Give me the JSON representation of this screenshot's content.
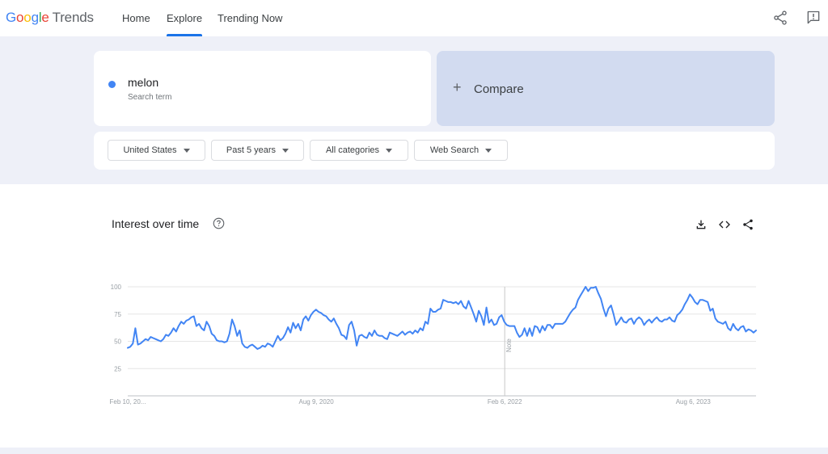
{
  "topbar": {
    "logo_letters": [
      "G",
      "o",
      "o",
      "g",
      "l",
      "e"
    ],
    "logo_trends": "Trends",
    "nav": {
      "home": "Home",
      "explore": "Explore",
      "trending": "Trending Now"
    },
    "icons": [
      "share-icon",
      "feedback-icon"
    ]
  },
  "search": {
    "term": "melon",
    "term_sub": "Search term",
    "dot_color": "#4285f4"
  },
  "compare": {
    "plus": "+",
    "label": "Compare"
  },
  "filters": {
    "region": "United States",
    "period": "Past 5 years",
    "category": "All categories",
    "property": "Web Search"
  },
  "chart_panel": {
    "title": "Interest over time",
    "icons": [
      "help-icon",
      "download-icon",
      "embed-icon",
      "share-icon"
    ],
    "note_label": "Note"
  },
  "chart_data": {
    "type": "line",
    "y_ticks": [
      "100",
      "75",
      "50",
      "25"
    ],
    "ylim": [
      0,
      100
    ],
    "x_labels": [
      "Feb 10, 20...",
      "Aug 9, 2020",
      "Feb 6, 2022",
      "Aug 6, 2023"
    ],
    "xlim": [
      "2019-02-10",
      "2024-02-04"
    ],
    "grid": true,
    "series": [
      {
        "color": "#4285f4",
        "values": [
          44,
          45,
          48,
          62,
          47,
          48,
          50,
          52,
          51,
          54,
          53,
          52,
          51,
          50,
          52,
          56,
          55,
          58,
          62,
          59,
          64,
          68,
          66,
          69,
          70,
          72,
          73,
          64,
          66,
          62,
          60,
          68,
          64,
          57,
          55,
          51,
          50,
          50,
          49,
          50,
          57,
          70,
          64,
          55,
          60,
          48,
          45,
          44,
          46,
          47,
          45,
          43,
          44,
          46,
          45,
          48,
          47,
          45,
          50,
          55,
          51,
          53,
          57,
          63,
          58,
          67,
          62,
          66,
          60,
          70,
          73,
          69,
          74,
          77,
          79,
          77,
          76,
          74,
          73,
          70,
          68,
          71,
          66,
          62,
          56,
          55,
          52,
          65,
          68,
          60,
          46,
          55,
          56,
          54,
          53,
          58,
          55,
          60,
          56,
          55,
          55,
          53,
          52,
          58,
          57,
          56,
          55,
          57,
          59,
          56,
          58,
          59,
          57,
          60,
          58,
          62,
          60,
          68,
          66,
          80,
          77,
          77,
          79,
          80,
          88,
          87,
          86,
          86,
          85,
          86,
          84,
          87,
          82,
          80,
          87,
          81,
          75,
          68,
          78,
          73,
          65,
          81,
          67,
          70,
          65,
          66,
          72,
          74,
          68,
          65,
          64,
          64,
          64,
          58,
          54,
          56,
          62,
          55,
          62,
          55,
          64,
          63,
          58,
          64,
          60,
          65,
          65,
          62,
          66,
          66,
          66,
          66,
          68,
          72,
          76,
          79,
          81,
          88,
          92,
          96,
          100,
          96,
          99,
          99,
          100,
          94,
          89,
          80,
          73,
          80,
          83,
          75,
          65,
          68,
          72,
          68,
          67,
          70,
          71,
          66,
          70,
          72,
          70,
          65,
          68,
          70,
          67,
          70,
          72,
          69,
          68,
          70,
          70,
          72,
          69,
          68,
          74,
          76,
          79,
          84,
          88,
          93,
          90,
          86,
          84,
          88,
          88,
          87,
          86,
          78,
          80,
          71,
          68,
          67,
          66,
          68,
          62,
          60,
          66,
          62,
          60,
          63,
          64,
          59,
          61,
          60,
          58,
          60
        ]
      }
    ]
  }
}
